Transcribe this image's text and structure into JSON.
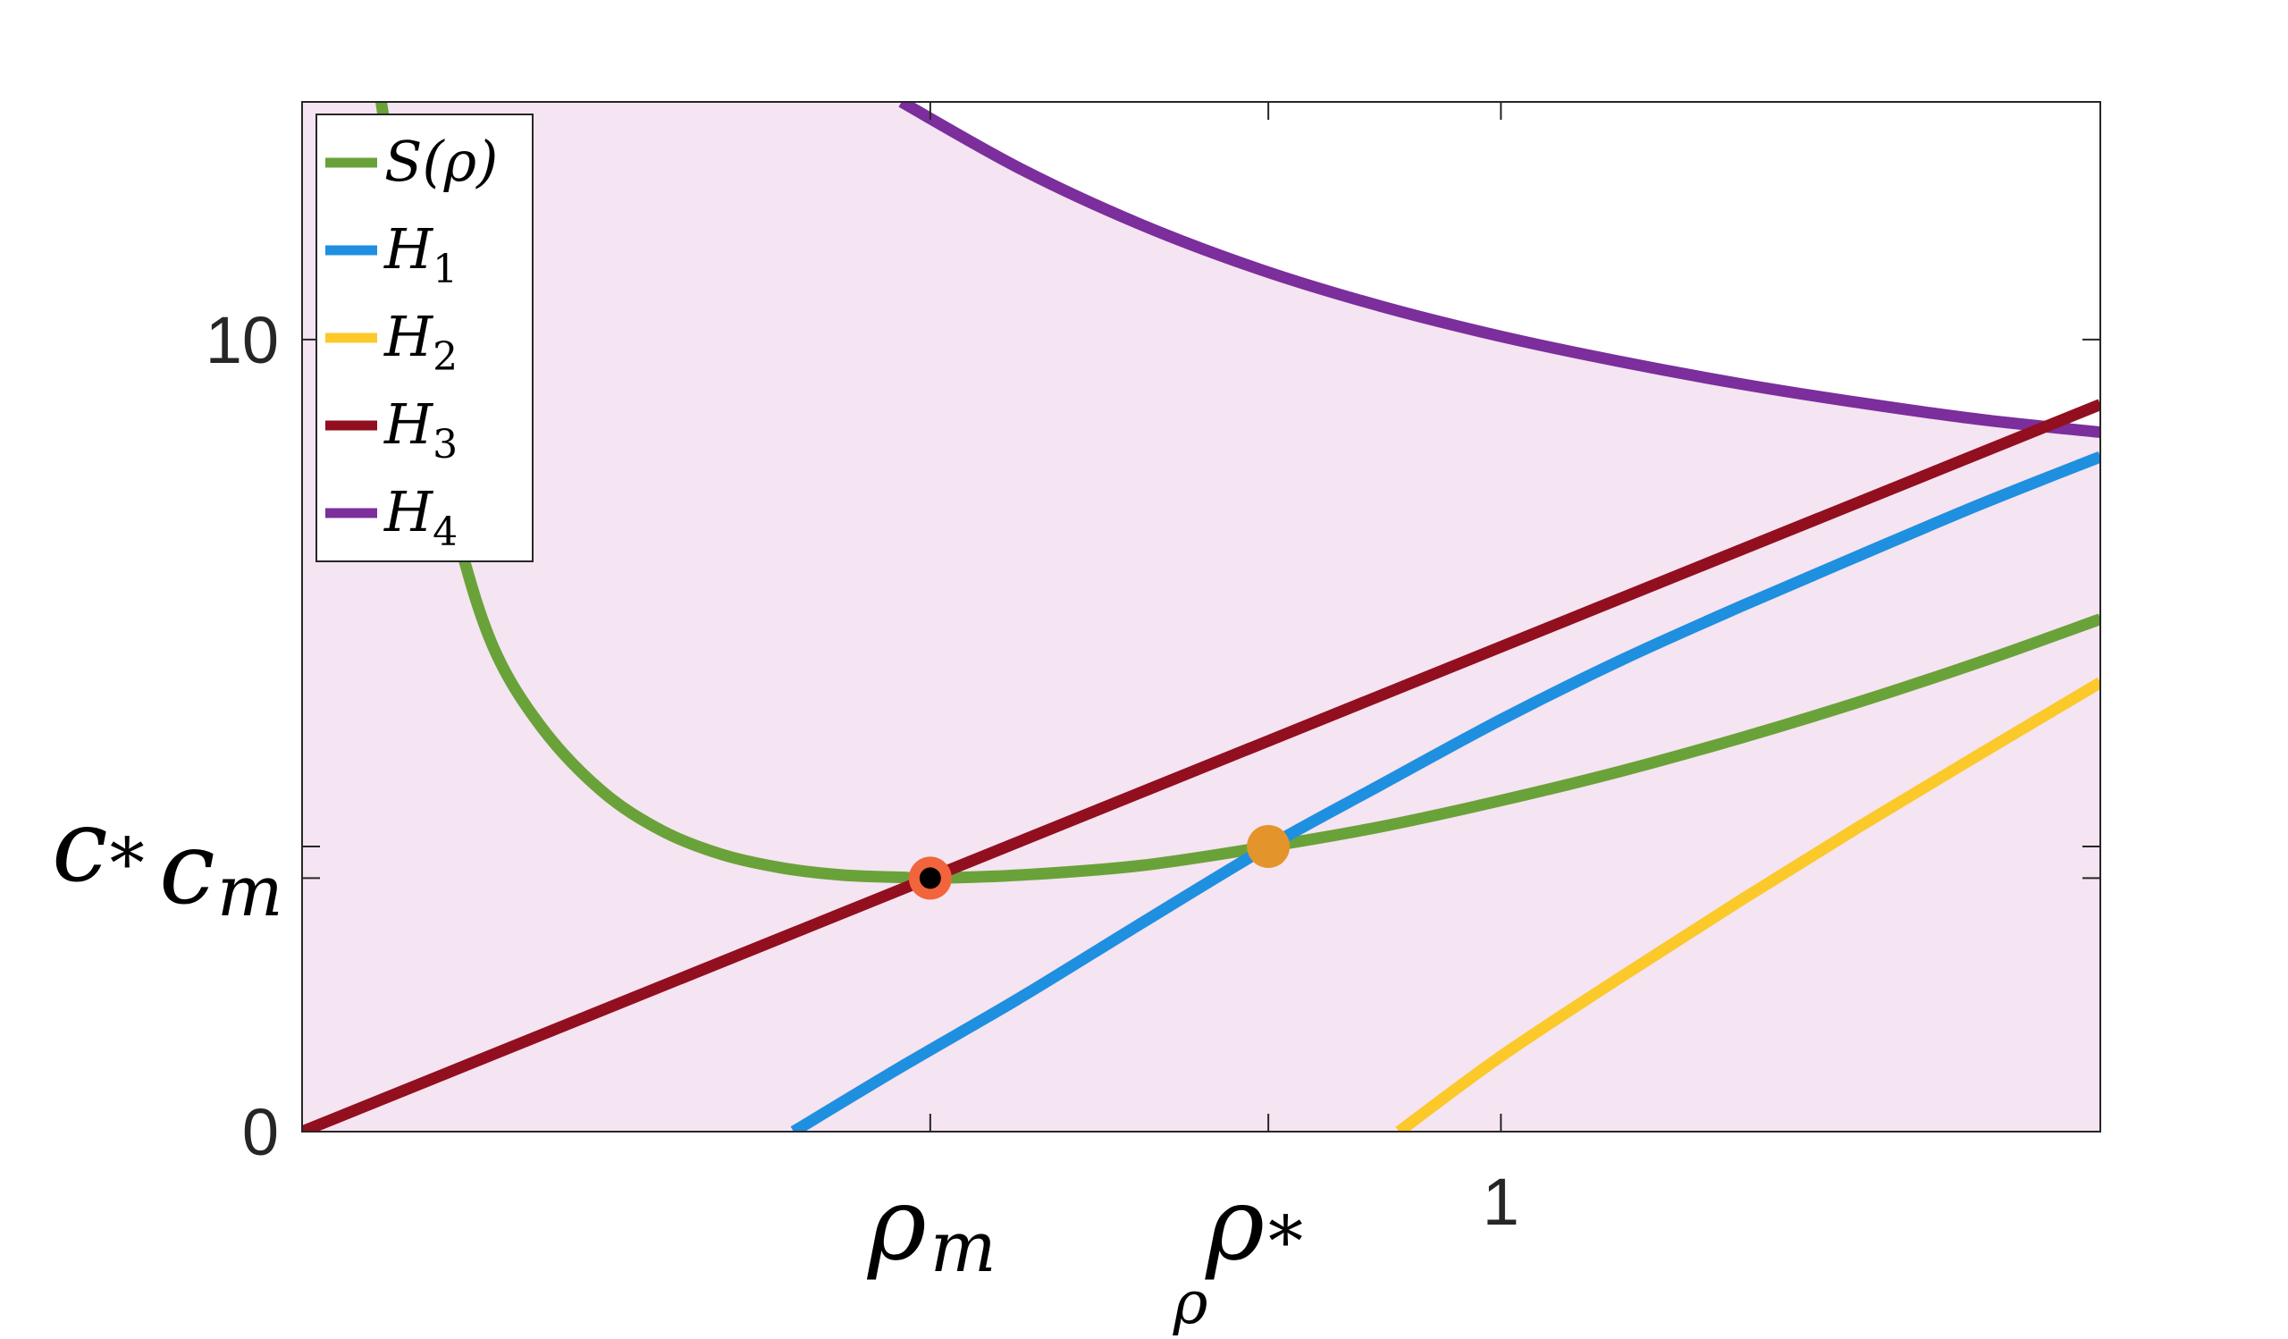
{
  "chart_data": {
    "type": "line",
    "xlabel": "ρ",
    "ylabel": "",
    "xlim": [
      0,
      1.5
    ],
    "ylim": [
      0,
      13
    ],
    "x_ticks": [
      {
        "value": 0.524,
        "main": "ρ",
        "sub": "m"
      },
      {
        "value": 0.806,
        "main": "ρ",
        "sub": "*"
      },
      {
        "value": 1,
        "label": "1"
      }
    ],
    "y_ticks": [
      {
        "value": 0,
        "label": "0"
      },
      {
        "value": 3.2,
        "main": "c",
        "sub": "m"
      },
      {
        "value": 3.6,
        "main": "c",
        "sub": "*"
      },
      {
        "value": 10,
        "label": "10"
      }
    ],
    "region": {
      "color": "#f5e4f1",
      "description_bound_series": "H4"
    },
    "legend": {
      "placement": "top-left"
    },
    "series": [
      {
        "name": "S(ρ)",
        "label_main": "S",
        "label_rest": "(ρ)",
        "color": "#6aa23a",
        "x": [
          0.066,
          0.08,
          0.1,
          0.13,
          0.16,
          0.2,
          0.25,
          0.3,
          0.35,
          0.4,
          0.45,
          0.5,
          0.524,
          0.6,
          0.7,
          0.806,
          0.9,
          1.0,
          1.1,
          1.2,
          1.3,
          1.4,
          1.5
        ],
        "y": [
          13,
          11.6,
          9.4,
          7.5,
          6.1,
          5.1,
          4.3,
          3.8,
          3.5,
          3.33,
          3.24,
          3.21,
          3.2,
          3.24,
          3.36,
          3.6,
          3.85,
          4.18,
          4.55,
          4.97,
          5.43,
          5.93,
          6.47
        ]
      },
      {
        "name": "H_1",
        "label_main": "H",
        "label_sub": "1",
        "color": "#1f8fe0",
        "x": [
          0.41,
          0.5,
          0.6,
          0.7,
          0.806,
          0.9,
          1.0,
          1.1,
          1.2,
          1.3,
          1.4,
          1.5
        ],
        "y": [
          0,
          0.82,
          1.7,
          2.63,
          3.6,
          4.38,
          5.2,
          5.95,
          6.63,
          7.28,
          7.92,
          8.52
        ]
      },
      {
        "name": "H_2",
        "label_main": "H",
        "label_sub": "2",
        "color": "#fbc92a",
        "x": [
          0.915,
          1.0,
          1.1,
          1.2,
          1.3,
          1.4,
          1.5
        ],
        "y": [
          0,
          0.95,
          1.95,
          2.92,
          3.86,
          4.77,
          5.67
        ]
      },
      {
        "name": "H_3",
        "label_main": "H",
        "label_sub": "3",
        "color": "#920f1f",
        "x": [
          0,
          1.5
        ],
        "y": [
          0,
          9.18
        ]
      },
      {
        "name": "H_4",
        "label_main": "H",
        "label_sub": "4",
        "color": "#7b2e9c",
        "x": [
          0.5,
          0.6,
          0.7,
          0.8,
          0.9,
          1.0,
          1.1,
          1.2,
          1.3,
          1.4,
          1.5
        ],
        "y": [
          13,
          12.15,
          11.45,
          10.88,
          10.42,
          10.04,
          9.72,
          9.44,
          9.2,
          8.99,
          8.83
        ]
      }
    ],
    "markers": [
      {
        "x": 0.524,
        "y": 3.2,
        "fill": "#000000",
        "stroke": "#f2643b"
      },
      {
        "x": 0.806,
        "y": 3.6,
        "fill": "#e3942a",
        "stroke": "#e3942a"
      }
    ]
  }
}
